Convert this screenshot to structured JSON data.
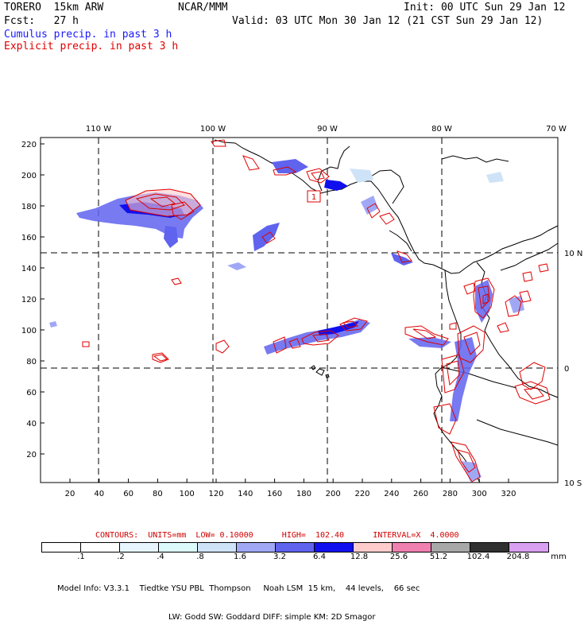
{
  "header": {
    "model": "TORERO  15km ARW",
    "center": "NCAR/MMM",
    "init": "Init: 00 UTC Sun 29 Jan 12",
    "fcst": "Fcst:   27 h",
    "valid": "Valid: 03 UTC Mon 30 Jan 12 (21 CST Sun 29 Jan 12)",
    "cumulus_title": "Cumulus precip. in past 3 h",
    "explicit_title": "Explicit precip. in past 3 h"
  },
  "colors": {
    "cumulus": "#1a1aff",
    "explicit": "#e00000",
    "coast": "#000000"
  },
  "map": {
    "lon_labels": [
      "110 W",
      "100 W",
      "90 W",
      "80 W",
      "70 W"
    ],
    "lat_labels": [
      "10 N",
      "0",
      "10 S"
    ],
    "y_ticks": [
      "220",
      "200",
      "180",
      "160",
      "140",
      "120",
      "100",
      "80",
      "60",
      "40",
      "20"
    ],
    "x_ticks": [
      "20",
      "40",
      "60",
      "80",
      "100",
      "120",
      "140",
      "160",
      "180",
      "200",
      "220",
      "240",
      "260",
      "280",
      "300",
      "320"
    ],
    "max_label": "1"
  },
  "contours": {
    "line": "CONTOURS:  UNITS=mm  LOW= 0.10000      HIGH=  102.40      INTERVAL=X  4.0000"
  },
  "colorbar": {
    "labels": [
      ".1",
      ".2",
      ".4",
      ".8",
      "1.6",
      "3.2",
      "6.4",
      "12.8",
      "25.6",
      "51.2",
      "102.4",
      "204.8",
      "mm"
    ],
    "colors": [
      "#ffffff",
      "#ffffff",
      "#e6f5ff",
      "#ddfafa",
      "#cfe3f8",
      "#a0a8f6",
      "#5f63ee",
      "#1010ee",
      "#ffcccc",
      "#f080b0",
      "#a8a8a8",
      "#303030",
      "#d9a0f2"
    ]
  },
  "model_info": {
    "line1": "Model Info: V3.3.1    Tiedtke YSU PBL  Thompson     Noah LSM  15 km,    44 levels,    66 sec",
    "line2": "LW: Godd SW: Goddard DIFF: simple KM: 2D Smagor"
  }
}
